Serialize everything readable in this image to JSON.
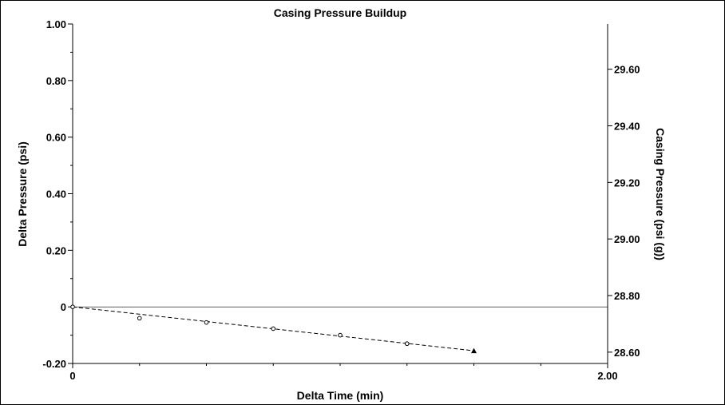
{
  "chart_data": {
    "type": "scatter",
    "title": "Casing Pressure Buildup",
    "xlabel": "Delta Time (min)",
    "ylabel": "Delta Pressure (psi)",
    "y2label": "Casing Pressure (psi (g))",
    "xlim": [
      0,
      2.0
    ],
    "ylim": [
      -0.2,
      1.0
    ],
    "y2lim": [
      28.56,
      29.76
    ],
    "x_ticks": [
      "0",
      "2.00"
    ],
    "y_ticks": [
      "1.00",
      "0.80",
      "0.60",
      "0.40",
      "0.20",
      "0",
      "-0.20"
    ],
    "y_tick_values": [
      1.0,
      0.8,
      0.6,
      0.4,
      0.2,
      0,
      -0.2
    ],
    "y2_ticks": [
      "29.60",
      "29.40",
      "29.20",
      "29.00",
      "28.80",
      "28.60"
    ],
    "y2_tick_values": [
      29.6,
      29.4,
      29.2,
      29.0,
      28.8,
      28.6
    ],
    "reference_line_y": 0,
    "series": [
      {
        "marker": "open-circle",
        "x": [
          0,
          0.25,
          0.5,
          0.75,
          1.0,
          1.25,
          1.5
        ],
        "y": [
          0,
          -0.04,
          -0.055,
          -0.077,
          -0.1,
          -0.13,
          -0.155
        ]
      }
    ],
    "fit_line": {
      "style": "dashed",
      "x": [
        0,
        1.5
      ],
      "y": [
        0,
        -0.155
      ]
    },
    "grid": false,
    "legend": "none",
    "colors": {
      "axis": "#000000",
      "marker": "#000000",
      "fit": "#000000",
      "reference": "#000000"
    }
  }
}
